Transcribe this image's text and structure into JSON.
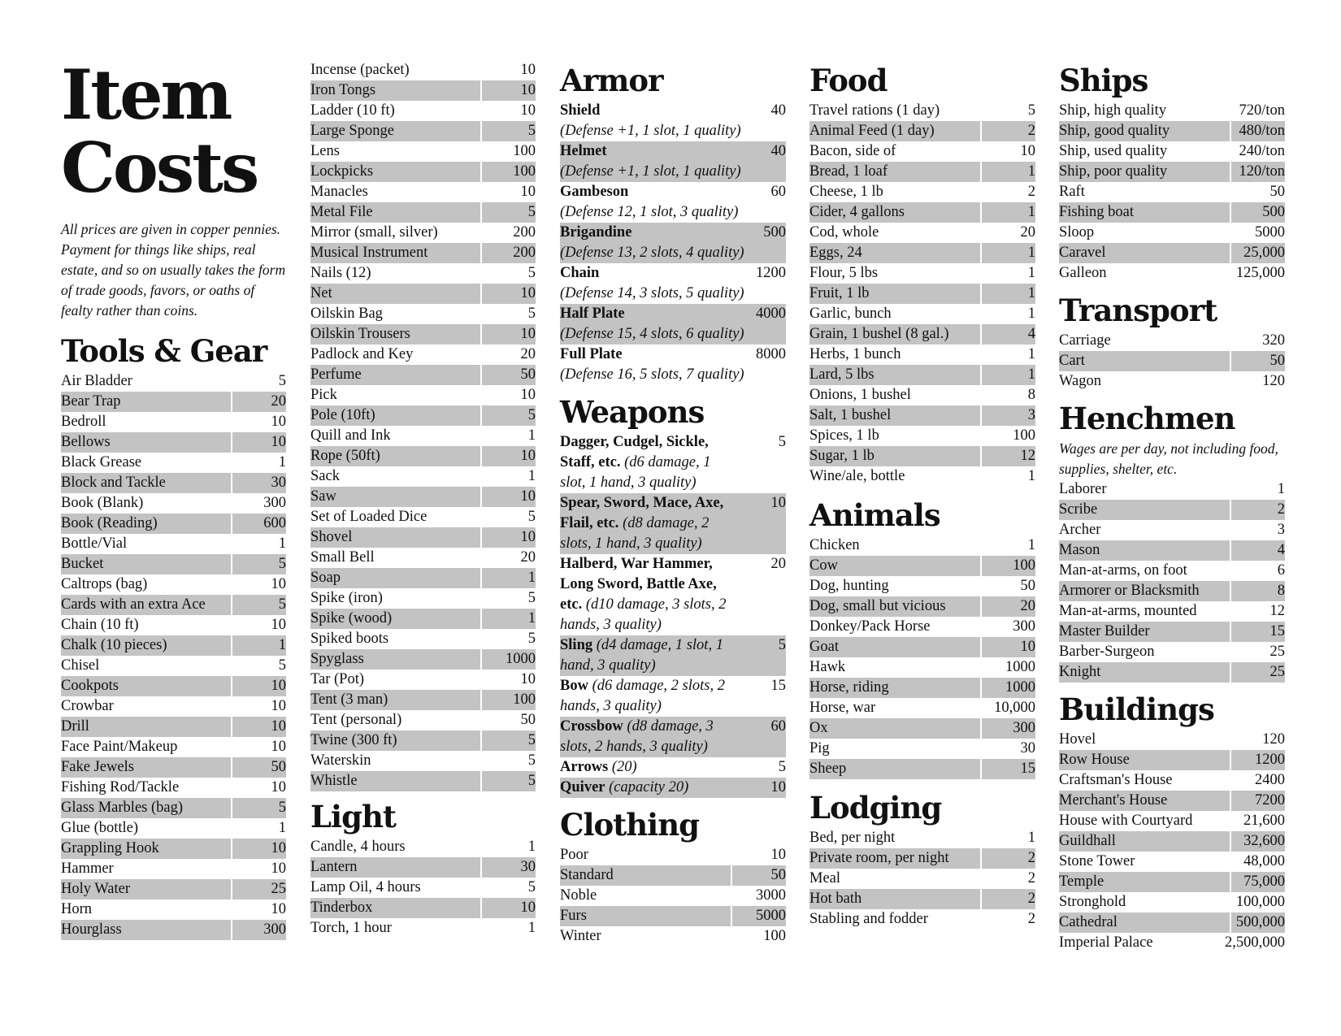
{
  "title": [
    "Item",
    "Costs"
  ],
  "intro": "All prices are given in copper pennies. Payment for things like ships, real estate, and so on usually takes the form of trade goods, favors, or oaths of fealty rather than coins.",
  "tools": {
    "heading": "Tools & Gear",
    "items": [
      [
        "Air Bladder",
        "5"
      ],
      [
        "Bear Trap",
        "20"
      ],
      [
        "Bedroll",
        "10"
      ],
      [
        "Bellows",
        "10"
      ],
      [
        "Black Grease",
        "1"
      ],
      [
        "Block and Tackle",
        "30"
      ],
      [
        "Book (Blank)",
        "300"
      ],
      [
        "Book (Reading)",
        "600"
      ],
      [
        "Bottle/Vial",
        "1"
      ],
      [
        "Bucket",
        "5"
      ],
      [
        "Caltrops (bag)",
        "10"
      ],
      [
        "Cards with an extra Ace",
        "5"
      ],
      [
        "Chain (10 ft)",
        "10"
      ],
      [
        "Chalk (10 pieces)",
        "1"
      ],
      [
        "Chisel",
        "5"
      ],
      [
        "Cookpots",
        "10"
      ],
      [
        "Crowbar",
        "10"
      ],
      [
        "Drill",
        "10"
      ],
      [
        "Face Paint/Makeup",
        "10"
      ],
      [
        "Fake Jewels",
        "50"
      ],
      [
        "Fishing Rod/Tackle",
        "10"
      ],
      [
        "Glass Marbles (bag)",
        "5"
      ],
      [
        "Glue (bottle)",
        "1"
      ],
      [
        "Grappling Hook",
        "10"
      ],
      [
        "Hammer",
        "10"
      ],
      [
        "Holy Water",
        "25"
      ],
      [
        "Horn",
        "10"
      ],
      [
        "Hourglass",
        "300"
      ]
    ]
  },
  "tools2": {
    "items": [
      [
        "Incense (packet)",
        "10"
      ],
      [
        "Iron Tongs",
        "10"
      ],
      [
        "Ladder (10 ft)",
        "10"
      ],
      [
        "Large Sponge",
        "5"
      ],
      [
        "Lens",
        "100"
      ],
      [
        "Lockpicks",
        "100"
      ],
      [
        "Manacles",
        "10"
      ],
      [
        "Metal File",
        "5"
      ],
      [
        "Mirror (small, silver)",
        "200"
      ],
      [
        "Musical Instrument",
        "200"
      ],
      [
        "Nails (12)",
        "5"
      ],
      [
        "Net",
        "10"
      ],
      [
        "Oilskin Bag",
        "5"
      ],
      [
        "Oilskin Trousers",
        "10"
      ],
      [
        "Padlock and Key",
        "20"
      ],
      [
        "Perfume",
        "50"
      ],
      [
        "Pick",
        "10"
      ],
      [
        "Pole (10ft)",
        "5"
      ],
      [
        "Quill and Ink",
        "1"
      ],
      [
        "Rope (50ft)",
        "10"
      ],
      [
        "Sack",
        "1"
      ],
      [
        "Saw",
        "10"
      ],
      [
        "Set of Loaded Dice",
        "5"
      ],
      [
        "Shovel",
        "10"
      ],
      [
        "Small Bell",
        "20"
      ],
      [
        "Soap",
        "1"
      ],
      [
        "Spike (iron)",
        "5"
      ],
      [
        "Spike (wood)",
        "1"
      ],
      [
        "Spiked boots",
        "5"
      ],
      [
        "Spyglass",
        "1000"
      ],
      [
        "Tar (Pot)",
        "10"
      ],
      [
        "Tent (3 man)",
        "100"
      ],
      [
        "Tent (personal)",
        "50"
      ],
      [
        "Twine (300 ft)",
        "5"
      ],
      [
        "Waterskin",
        "5"
      ],
      [
        "Whistle",
        "5"
      ]
    ]
  },
  "light": {
    "heading": "Light",
    "items": [
      [
        "Candle, 4 hours",
        "1"
      ],
      [
        "Lantern",
        "30"
      ],
      [
        "Lamp Oil, 4 hours",
        "5"
      ],
      [
        "Tinderbox",
        "10"
      ],
      [
        "Torch, 1 hour",
        "1"
      ]
    ]
  },
  "armor": {
    "heading": "Armor",
    "items": [
      {
        "name": "Shield",
        "value": "40",
        "detail": "(Defense +1, 1 slot, 1 quality)"
      },
      {
        "name": "Helmet",
        "value": "40",
        "detail": "(Defense +1, 1 slot, 1 quality)"
      },
      {
        "name": "Gambeson",
        "value": "60",
        "detail": "(Defense 12, 1 slot, 3 quality)"
      },
      {
        "name": "Brigandine",
        "value": "500",
        "detail": "(Defense 13, 2 slots, 4 quality)"
      },
      {
        "name": "Chain",
        "value": "1200",
        "detail": "(Defense 14, 3 slots, 5 quality)"
      },
      {
        "name": "Half Plate",
        "value": "4000",
        "detail": "(Defense 15, 4 slots, 6 quality)"
      },
      {
        "name": "Full Plate",
        "value": "8000",
        "detail": "(Defense 16, 5 slots, 7 quality)"
      }
    ]
  },
  "weapons": {
    "heading": "Weapons",
    "items": [
      {
        "name": "Dagger, Cudgel, Sickle, Staff, etc.",
        "detail": "(d6 damage, 1 slot, 1 hand, 3 quality)",
        "value": "5"
      },
      {
        "name": "Spear, Sword, Mace, Axe, Flail, etc.",
        "detail": "(d8 damage, 2 slots, 1 hand, 3 quality)",
        "value": "10"
      },
      {
        "name": "Halberd, War Hammer, Long Sword, Battle Axe, etc.",
        "detail": "(d10 damage, 3 slots, 2 hands, 3 quality)",
        "value": "20"
      },
      {
        "name": "Sling",
        "detail": "(d4 damage, 1 slot, 1 hand, 3 quality)",
        "value": "5"
      },
      {
        "name": "Bow",
        "detail": "(d6 damage,  2 slots, 2 hands, 3 quality)",
        "value": "15"
      },
      {
        "name": "Crossbow",
        "detail": "(d8 damage, 3 slots, 2 hands, 3 quality)",
        "value": "60"
      },
      {
        "name": "Arrows",
        "detail": "(20)",
        "value": "5"
      },
      {
        "name": "Quiver",
        "detail": "(capacity 20)",
        "value": "10"
      }
    ]
  },
  "clothing": {
    "heading": "Clothing",
    "items": [
      [
        "Poor",
        "10"
      ],
      [
        "Standard",
        "50"
      ],
      [
        "Noble",
        "3000"
      ],
      [
        "Furs",
        "5000"
      ],
      [
        "Winter",
        "100"
      ]
    ]
  },
  "food": {
    "heading": "Food",
    "items": [
      [
        "Travel rations (1 day)",
        "5"
      ],
      [
        "Animal Feed (1 day)",
        "2"
      ],
      [
        "Bacon, side of",
        "10"
      ],
      [
        "Bread, 1 loaf",
        "1"
      ],
      [
        "Cheese, 1 lb",
        "2"
      ],
      [
        "Cider, 4 gallons",
        "1"
      ],
      [
        "Cod, whole",
        "20"
      ],
      [
        "Eggs, 24",
        "1"
      ],
      [
        "Flour, 5 lbs",
        "1"
      ],
      [
        "Fruit, 1 lb",
        "1"
      ],
      [
        "Garlic, bunch",
        "1"
      ],
      [
        "Grain, 1 bushel (8 gal.)",
        "4"
      ],
      [
        "Herbs, 1 bunch",
        "1"
      ],
      [
        "Lard, 5 lbs",
        "1"
      ],
      [
        "Onions, 1 bushel",
        "8"
      ],
      [
        "Salt, 1 bushel",
        "3"
      ],
      [
        "Spices, 1 lb",
        "100"
      ],
      [
        "Sugar, 1 lb",
        "12"
      ],
      [
        "Wine/ale, bottle",
        "1"
      ]
    ]
  },
  "animals": {
    "heading": "Animals",
    "items": [
      [
        "Chicken",
        "1"
      ],
      [
        "Cow",
        "100"
      ],
      [
        "Dog, hunting",
        "50"
      ],
      [
        "Dog, small but vicious",
        "20"
      ],
      [
        "Donkey/Pack Horse",
        "300"
      ],
      [
        "Goat",
        "10"
      ],
      [
        "Hawk",
        "1000"
      ],
      [
        "Horse, riding",
        "1000"
      ],
      [
        "Horse, war",
        "10,000"
      ],
      [
        "Ox",
        "300"
      ],
      [
        "Pig",
        "30"
      ],
      [
        "Sheep",
        "15"
      ]
    ]
  },
  "lodging": {
    "heading": "Lodging",
    "items": [
      [
        "Bed, per night",
        "1"
      ],
      [
        "Private room, per night",
        "2"
      ],
      [
        "Meal",
        "2"
      ],
      [
        "Hot bath",
        "2"
      ],
      [
        "Stabling and fodder",
        "2"
      ]
    ]
  },
  "ships": {
    "heading": "Ships",
    "items": [
      [
        "Ship, high quality",
        "720/ton"
      ],
      [
        "Ship, good quality",
        "480/ton"
      ],
      [
        "Ship, used quality",
        "240/ton"
      ],
      [
        "Ship, poor quality",
        "120/ton"
      ],
      [
        "Raft",
        "50"
      ],
      [
        "Fishing boat",
        "500"
      ],
      [
        "Sloop",
        "5000"
      ],
      [
        "Caravel",
        "25,000"
      ],
      [
        "Galleon",
        "125,000"
      ]
    ]
  },
  "transport": {
    "heading": "Transport",
    "items": [
      [
        "Carriage",
        "320"
      ],
      [
        "Cart",
        "50"
      ],
      [
        "Wagon",
        "120"
      ]
    ]
  },
  "henchmen": {
    "heading": "Henchmen",
    "note": "Wages are per day, not including food, supplies, shelter, etc.",
    "items": [
      [
        "Laborer",
        "1"
      ],
      [
        "Scribe",
        "2"
      ],
      [
        "Archer",
        "3"
      ],
      [
        "Mason",
        "4"
      ],
      [
        "Man-at-arms, on foot",
        "6"
      ],
      [
        "Armorer or Blacksmith",
        "8"
      ],
      [
        "Man-at-arms, mounted",
        "12"
      ],
      [
        "Master Builder",
        "15"
      ],
      [
        "Barber-Surgeon",
        "25"
      ],
      [
        "Knight",
        "25"
      ]
    ]
  },
  "buildings": {
    "heading": "Buildings",
    "items": [
      [
        "Hovel",
        "120"
      ],
      [
        "Row House",
        "1200"
      ],
      [
        "Craftsman's House",
        "2400"
      ],
      [
        "Merchant's House",
        "7200"
      ],
      [
        "House with Courtyard",
        "21,600"
      ],
      [
        "Guildhall",
        "32,600"
      ],
      [
        "Stone Tower",
        "48,000"
      ],
      [
        "Temple",
        "75,000"
      ],
      [
        "Stronghold",
        "100,000"
      ],
      [
        "Cathedral",
        "500,000"
      ],
      [
        "Imperial Palace",
        "2,500,000"
      ]
    ]
  }
}
